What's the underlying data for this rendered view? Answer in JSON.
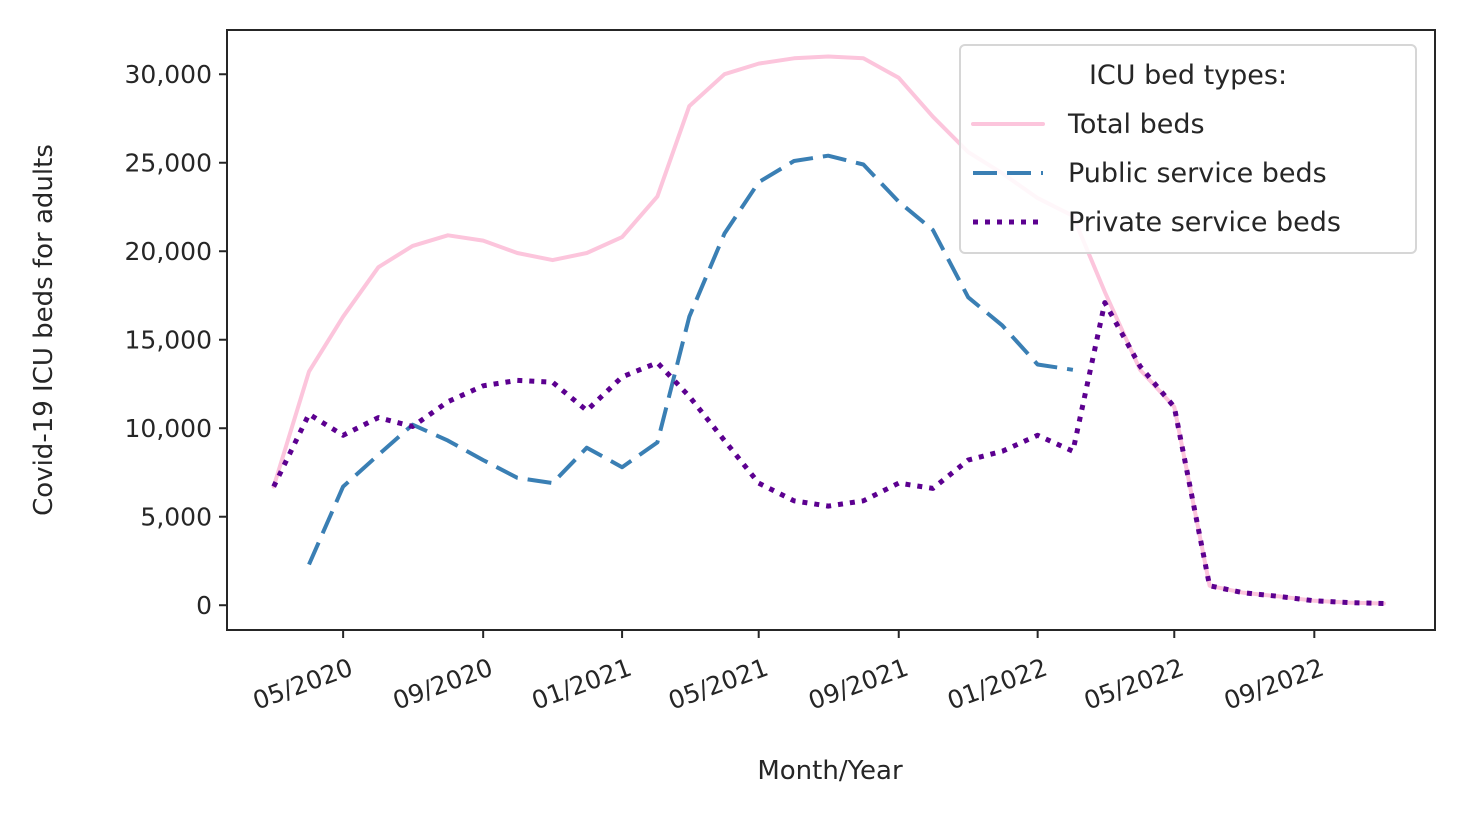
{
  "chart_data": {
    "type": "line",
    "xlabel": "Month/Year",
    "ylabel": "Covid-19 ICU beds for adults",
    "ylim": [
      -1400,
      32500
    ],
    "xlim": [
      "2020-01-20",
      "2022-12-16"
    ],
    "yticks": [
      0,
      5000,
      10000,
      15000,
      20000,
      25000,
      30000
    ],
    "ytick_labels": [
      "0",
      "5,000",
      "10,000",
      "15,000",
      "20,000",
      "25,000",
      "30,000"
    ],
    "xticks": [
      "2020-05-01",
      "2020-09-01",
      "2021-01-01",
      "2021-05-01",
      "2021-09-01",
      "2022-01-01",
      "2022-05-01",
      "2022-09-01"
    ],
    "xtick_labels": [
      "05/2020",
      "09/2020",
      "01/2021",
      "05/2021",
      "09/2021",
      "01/2022",
      "05/2022",
      "09/2022"
    ],
    "grid": false,
    "legend": {
      "title": "ICU bed types:",
      "position": "top-right"
    },
    "series": [
      {
        "name": "Total beds",
        "color": "#fcc5dc",
        "style": "solid",
        "x": [
          "2020-03-01",
          "2020-04-01",
          "2020-05-01",
          "2020-06-01",
          "2020-07-01",
          "2020-08-01",
          "2020-09-01",
          "2020-10-01",
          "2020-11-01",
          "2020-12-01",
          "2021-01-01",
          "2021-02-01",
          "2021-03-01",
          "2021-04-01",
          "2021-05-01",
          "2021-06-01",
          "2021-07-01",
          "2021-08-01",
          "2021-09-01",
          "2021-10-01",
          "2021-11-01",
          "2021-12-01",
          "2022-01-01",
          "2022-02-01",
          "2022-03-01",
          "2022-04-01",
          "2022-05-01",
          "2022-06-01",
          "2022-07-01",
          "2022-08-01",
          "2022-09-01",
          "2022-10-01",
          "2022-11-01"
        ],
        "values": [
          6700,
          13200,
          16300,
          19100,
          20300,
          20900,
          20600,
          19900,
          19500,
          19900,
          20800,
          23100,
          28200,
          30000,
          30600,
          30900,
          31000,
          30900,
          29800,
          27600,
          25600,
          24400,
          23000,
          22000,
          17700,
          13300,
          11200,
          1100,
          700,
          500,
          250,
          150,
          100
        ]
      },
      {
        "name": "Public service beds",
        "color": "#3a7fb4",
        "style": "dashed",
        "x": [
          "2020-04-01",
          "2020-05-01",
          "2020-06-01",
          "2020-07-01",
          "2020-08-01",
          "2020-09-01",
          "2020-10-01",
          "2020-11-01",
          "2020-12-01",
          "2021-01-01",
          "2021-02-01",
          "2021-03-01",
          "2021-04-01",
          "2021-05-01",
          "2021-06-01",
          "2021-07-01",
          "2021-08-01",
          "2021-09-01",
          "2021-10-01",
          "2021-11-01",
          "2021-12-01",
          "2022-01-01",
          "2022-02-01"
        ],
        "values": [
          2300,
          6700,
          8500,
          10200,
          9300,
          8200,
          7200,
          6900,
          8900,
          7800,
          9200,
          16300,
          21000,
          23900,
          25100,
          25400,
          24900,
          22800,
          21200,
          17400,
          15800,
          13600,
          13300
        ]
      },
      {
        "name": "Private service beds",
        "color": "#5c0090",
        "style": "dotted",
        "x": [
          "2020-03-01",
          "2020-04-01",
          "2020-05-01",
          "2020-06-01",
          "2020-07-01",
          "2020-08-01",
          "2020-09-01",
          "2020-10-01",
          "2020-11-01",
          "2020-12-01",
          "2021-01-01",
          "2021-02-01",
          "2021-03-01",
          "2021-04-01",
          "2021-05-01",
          "2021-06-01",
          "2021-07-01",
          "2021-08-01",
          "2021-09-01",
          "2021-10-01",
          "2021-11-01",
          "2021-12-01",
          "2022-01-01",
          "2022-02-01",
          "2022-03-01",
          "2022-04-01",
          "2022-05-01",
          "2022-06-01",
          "2022-07-01",
          "2022-08-01",
          "2022-09-01",
          "2022-10-01",
          "2022-11-01"
        ],
        "values": [
          6700,
          10800,
          9600,
          10600,
          10100,
          11500,
          12400,
          12700,
          12600,
          11000,
          12900,
          13700,
          11800,
          9300,
          6900,
          5900,
          5600,
          5900,
          6900,
          6600,
          8200,
          8700,
          9600,
          8700,
          17100,
          13500,
          11200,
          1100,
          700,
          500,
          250,
          150,
          100
        ]
      }
    ]
  }
}
